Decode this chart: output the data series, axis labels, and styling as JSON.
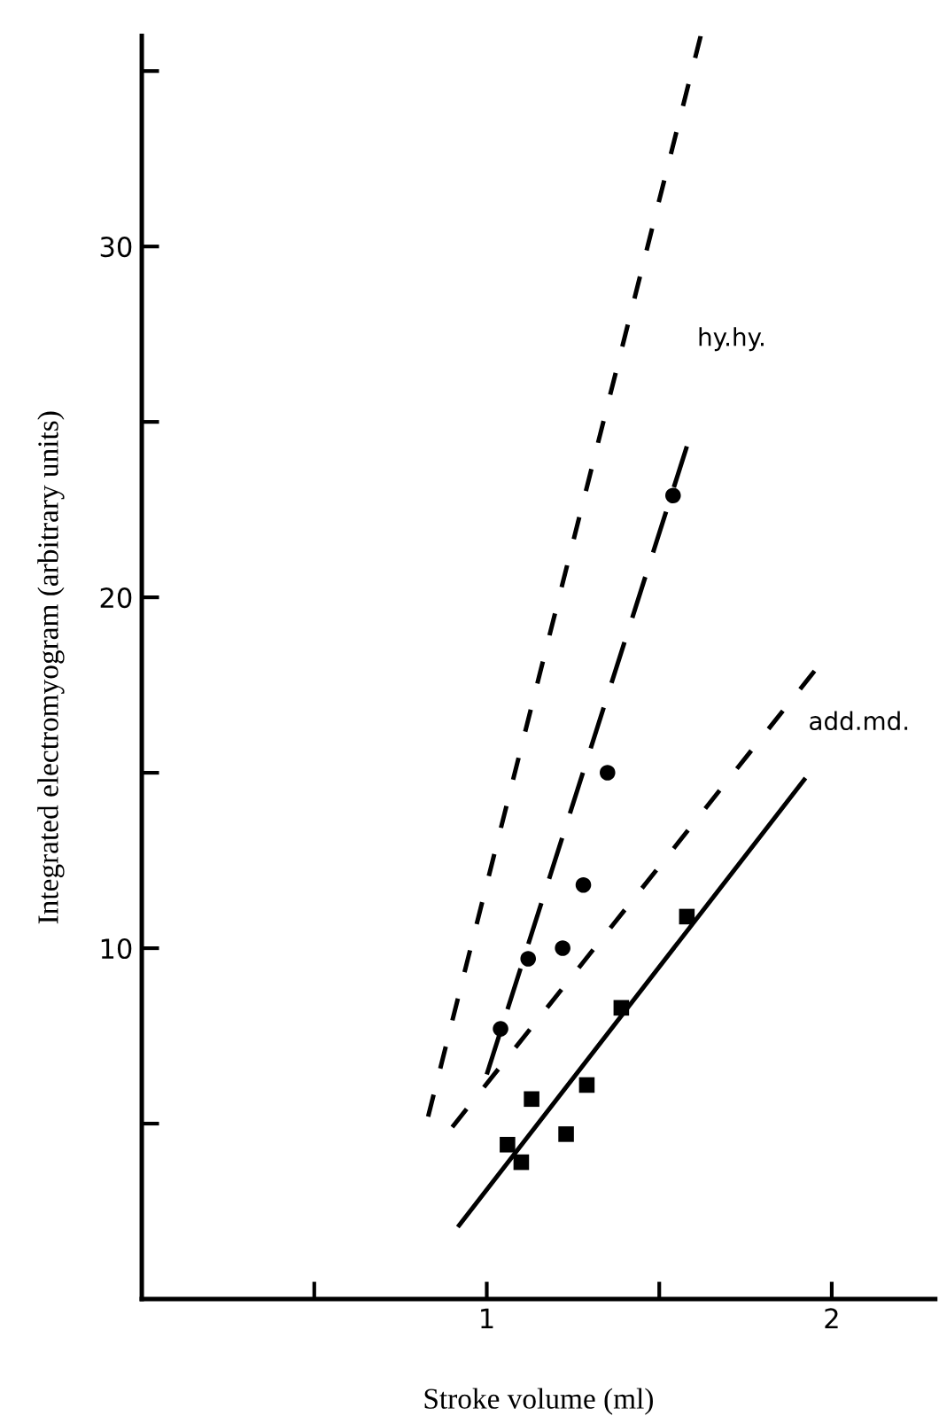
{
  "chart_data": {
    "type": "scatter",
    "xlabel": "Stroke volume (ml)",
    "ylabel": "Integrated electromyogram (arbitrary units)",
    "series": [
      {
        "color": "#000000",
        "marker": "circle",
        "x": [
          1.04,
          1.12,
          1.22,
          1.28,
          1.35,
          1.54
        ],
        "values": [
          7.7,
          9.7,
          10.0,
          11.8,
          15.0,
          22.9
        ]
      },
      {
        "color": "#000000",
        "marker": "square",
        "x": [
          1.06,
          1.1,
          1.13,
          1.23,
          1.29,
          1.39,
          1.58
        ],
        "values": [
          4.4,
          3.9,
          5.7,
          4.7,
          6.1,
          8.3,
          10.9
        ]
      },
      {
        "type": "line",
        "color": "#000000",
        "line_style": "dashed",
        "x": [
          0.83,
          1.62
        ],
        "values": [
          5.2,
          36.0
        ]
      },
      {
        "type": "line",
        "color": "#000000",
        "line_style": "longdash",
        "x": [
          1.0,
          1.58
        ],
        "values": [
          6.4,
          24.3
        ]
      },
      {
        "type": "line",
        "color": "#000000",
        "line_style": "dashed",
        "x": [
          0.9,
          1.95
        ],
        "values": [
          4.9,
          17.9
        ]
      },
      {
        "type": "line",
        "color": "#000000",
        "line_style": "solid",
        "x": [
          0.92,
          1.92
        ],
        "values": [
          2.1,
          14.8
        ]
      }
    ],
    "annotations": [
      "hy.hy.",
      "add.md."
    ],
    "xlim": [
      0,
      2.3
    ],
    "ylim": [
      0,
      36
    ],
    "xticks": [
      {
        "value": 0.5,
        "label": null
      },
      1,
      {
        "value": 1.5,
        "label": null
      },
      2
    ],
    "yticks": [
      {
        "value": 5,
        "label": null
      },
      10,
      {
        "value": 15,
        "label": null
      },
      20,
      {
        "value": 25,
        "label": null
      },
      30,
      {
        "value": 35,
        "label": null
      }
    ],
    "grid": false,
    "legend": false
  }
}
